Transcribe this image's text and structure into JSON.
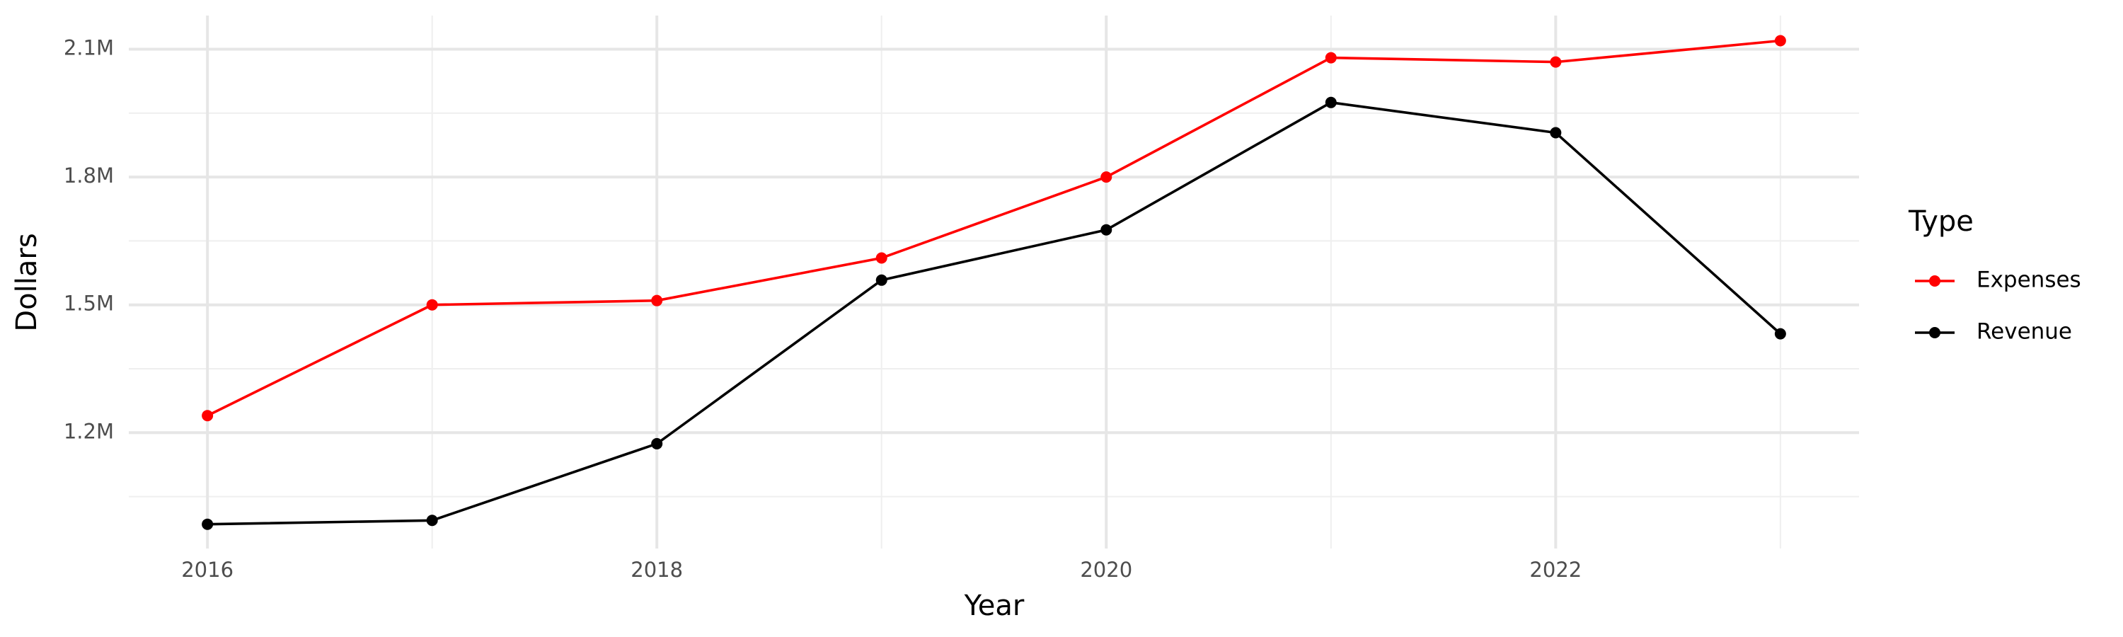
{
  "chart_data": {
    "type": "line",
    "x_label": "Year",
    "y_label": "Dollars",
    "legend_title": "Type",
    "x": [
      2016,
      2017,
      2018,
      2019,
      2020,
      2021,
      2022,
      2023
    ],
    "series": [
      {
        "name": "Expenses",
        "color": "#ff0000",
        "values": [
          1240000,
          1500000,
          1510000,
          1610000,
          1800000,
          2080000,
          2070000,
          2120000
        ]
      },
      {
        "name": "Revenue",
        "color": "#000000",
        "values": [
          985000,
          994000,
          1174000,
          1558000,
          1676000,
          1975000,
          1904000,
          1432000
        ]
      }
    ],
    "xlim": [
      2015.65,
      2023.35
    ],
    "xticks": [
      2016,
      2018,
      2020,
      2022
    ],
    "x_minor_ticks": [
      2017,
      2019,
      2021,
      2023
    ],
    "ylim": [
      928000,
      2179000
    ],
    "yticks": [
      {
        "value": 1200000,
        "label": "1.2M"
      },
      {
        "value": 1500000,
        "label": "1.5M"
      },
      {
        "value": 1800000,
        "label": "1.8M"
      },
      {
        "value": 2100000,
        "label": "2.1M"
      }
    ],
    "y_minor_ticks": [
      1050000,
      1350000,
      1650000,
      1950000
    ],
    "grid": true,
    "legend": "right"
  }
}
